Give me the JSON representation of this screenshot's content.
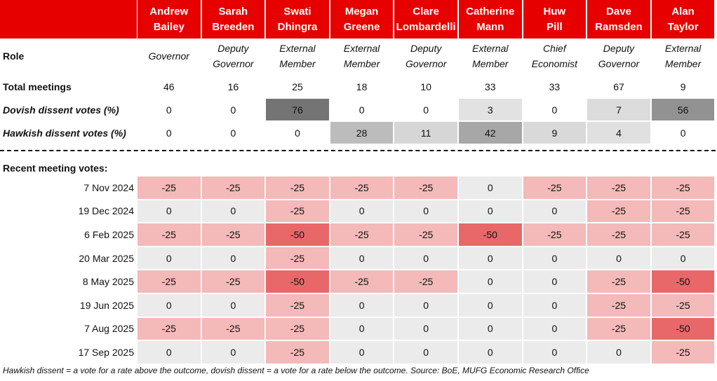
{
  "labels": {
    "role": "Role",
    "total_meetings": "Total meetings",
    "dovish": "Dovish dissent votes (%)",
    "hawkish": "Hawkish dissent votes (%)",
    "recent": "Recent meeting votes:"
  },
  "meeting_dates": [
    "7 Nov 2024",
    "19 Dec 2024",
    "6 Feb 2025",
    "20 Mar 2025",
    "8 May 2025",
    "19 Jun 2025",
    "7 Aug 2025",
    "17 Sep 2025"
  ],
  "members": [
    {
      "name": [
        "Andrew",
        "Bailey"
      ],
      "role": [
        "Governor"
      ],
      "total_meetings": 46,
      "dovish": 0,
      "hawkish": 0,
      "votes": [
        -25,
        0,
        -25,
        0,
        -25,
        0,
        -25,
        0
      ]
    },
    {
      "name": [
        "Sarah",
        "Breeden"
      ],
      "role": [
        "Deputy",
        "Governor"
      ],
      "total_meetings": 16,
      "dovish": 0,
      "hawkish": 0,
      "votes": [
        -25,
        0,
        -25,
        0,
        -25,
        0,
        -25,
        0
      ]
    },
    {
      "name": [
        "Swati",
        "Dhingra"
      ],
      "role": [
        "External",
        "Member"
      ],
      "total_meetings": 25,
      "dovish": 76,
      "hawkish": 0,
      "votes": [
        -25,
        -25,
        -50,
        -25,
        -50,
        -25,
        -25,
        -25
      ]
    },
    {
      "name": [
        "Megan",
        "Greene"
      ],
      "role": [
        "External",
        "Member"
      ],
      "total_meetings": 18,
      "dovish": 0,
      "hawkish": 28,
      "votes": [
        -25,
        0,
        -25,
        0,
        -25,
        0,
        0,
        0
      ]
    },
    {
      "name": [
        "Clare",
        "Lombardelli"
      ],
      "role": [
        "Deputy",
        "Governor"
      ],
      "total_meetings": 10,
      "dovish": 0,
      "hawkish": 11,
      "votes": [
        -25,
        0,
        -25,
        0,
        -25,
        0,
        0,
        0
      ]
    },
    {
      "name": [
        "Catherine",
        "Mann"
      ],
      "role": [
        "External",
        "Member"
      ],
      "total_meetings": 33,
      "dovish": 3,
      "hawkish": 42,
      "votes": [
        0,
        0,
        -50,
        0,
        0,
        0,
        0,
        0
      ]
    },
    {
      "name": [
        "Huw",
        "Pill"
      ],
      "role": [
        "Chief",
        "Economist"
      ],
      "total_meetings": 33,
      "dovish": 0,
      "hawkish": 9,
      "votes": [
        -25,
        0,
        -25,
        0,
        0,
        0,
        0,
        0
      ]
    },
    {
      "name": [
        "Dave",
        "Ramsden"
      ],
      "role": [
        "Deputy",
        "Governor"
      ],
      "total_meetings": 67,
      "dovish": 7,
      "hawkish": 4,
      "votes": [
        -25,
        -25,
        -25,
        0,
        -25,
        -25,
        -25,
        0
      ]
    },
    {
      "name": [
        "Alan",
        "Taylor"
      ],
      "role": [
        "External",
        "Member"
      ],
      "total_meetings": 9,
      "dovish": 56,
      "hawkish": 0,
      "votes": [
        -25,
        -25,
        -25,
        0,
        -50,
        -25,
        -50,
        -25
      ]
    }
  ],
  "footnote": "Hawkish dissent = a vote for a rate above the outcome, dovish dissent = a vote for a rate below the outcome. Source: BoE, MUFG Economic Research Office"
}
